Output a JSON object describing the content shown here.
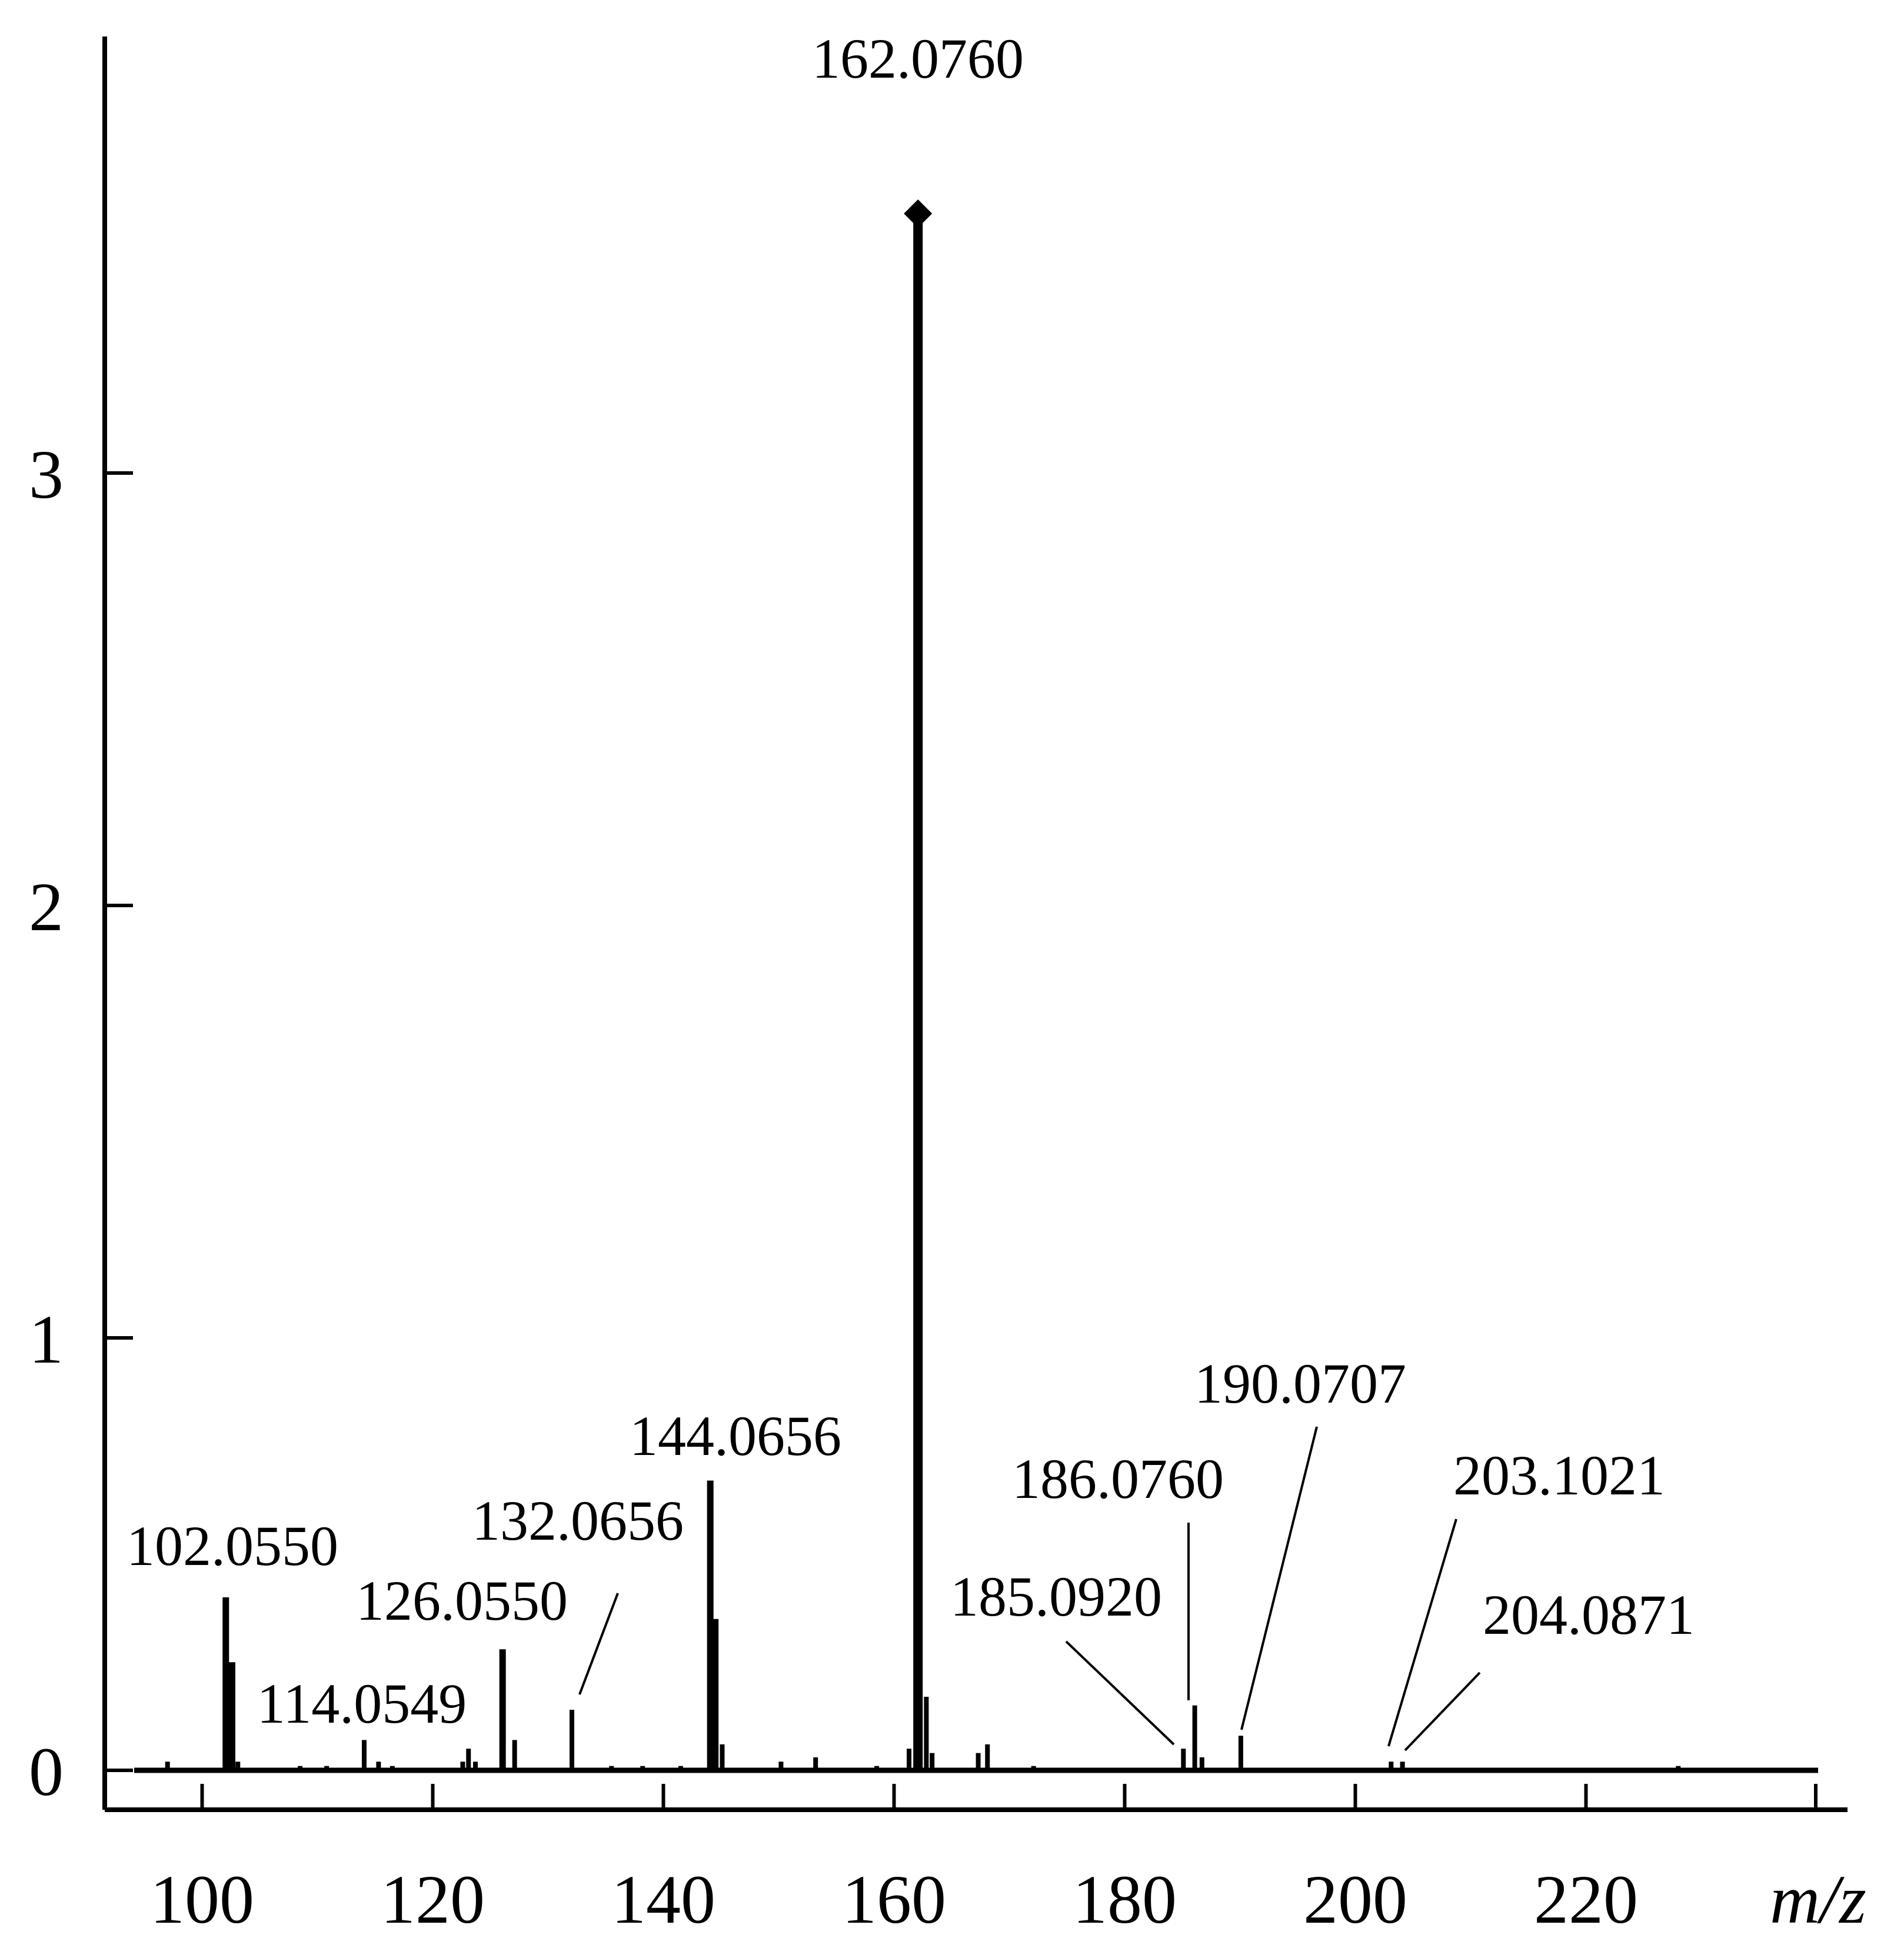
{
  "chart_data": {
    "type": "bar",
    "title": "",
    "xlabel": "m/z",
    "ylabel": "",
    "xlim": [
      91,
      240
    ],
    "ylim": [
      -0.09,
      4.1
    ],
    "x_ticks": [
      100,
      120,
      140,
      160,
      180,
      200,
      220
    ],
    "y_ticks": [
      0,
      1,
      2,
      3
    ],
    "grid": false,
    "legend": "none",
    "peaks": [
      {
        "mz": 97.0,
        "intensity": 0.02
      },
      {
        "mz": 102.055,
        "intensity": 0.4,
        "label": "102.0550"
      },
      {
        "mz": 102.6,
        "intensity": 0.25
      },
      {
        "mz": 103.1,
        "intensity": 0.02
      },
      {
        "mz": 108.5,
        "intensity": 0.01
      },
      {
        "mz": 110.8,
        "intensity": 0.01
      },
      {
        "mz": 114.0549,
        "intensity": 0.07,
        "label": "114.0549"
      },
      {
        "mz": 115.3,
        "intensity": 0.02
      },
      {
        "mz": 116.5,
        "intensity": 0.01
      },
      {
        "mz": 122.6,
        "intensity": 0.02
      },
      {
        "mz": 123.1,
        "intensity": 0.05
      },
      {
        "mz": 123.7,
        "intensity": 0.02
      },
      {
        "mz": 126.055,
        "intensity": 0.28,
        "label": "126.0550"
      },
      {
        "mz": 127.1,
        "intensity": 0.07
      },
      {
        "mz": 132.0656,
        "intensity": 0.14,
        "label": "132.0656"
      },
      {
        "mz": 135.5,
        "intensity": 0.01
      },
      {
        "mz": 138.2,
        "intensity": 0.01
      },
      {
        "mz": 141.5,
        "intensity": 0.01
      },
      {
        "mz": 144.0656,
        "intensity": 0.67,
        "label": "144.0656"
      },
      {
        "mz": 144.5,
        "intensity": 0.35
      },
      {
        "mz": 145.1,
        "intensity": 0.06
      },
      {
        "mz": 150.2,
        "intensity": 0.02
      },
      {
        "mz": 153.2,
        "intensity": 0.03
      },
      {
        "mz": 158.5,
        "intensity": 0.01
      },
      {
        "mz": 161.3,
        "intensity": 0.05
      },
      {
        "mz": 162.076,
        "intensity": 3.6,
        "label": "162.0760"
      },
      {
        "mz": 162.8,
        "intensity": 0.17
      },
      {
        "mz": 163.3,
        "intensity": 0.04
      },
      {
        "mz": 167.3,
        "intensity": 0.04
      },
      {
        "mz": 168.1,
        "intensity": 0.06
      },
      {
        "mz": 172.1,
        "intensity": 0.01
      },
      {
        "mz": 185.092,
        "intensity": 0.05,
        "label": "185.0920"
      },
      {
        "mz": 186.076,
        "intensity": 0.15,
        "label": "186.0760"
      },
      {
        "mz": 186.7,
        "intensity": 0.03
      },
      {
        "mz": 190.0707,
        "intensity": 0.08,
        "label": "190.0707"
      },
      {
        "mz": 203.1021,
        "intensity": 0.02,
        "label": "203.1021"
      },
      {
        "mz": 204.0871,
        "intensity": 0.02,
        "label": "204.0871"
      },
      {
        "mz": 228.0,
        "intensity": 0.01
      }
    ],
    "peak_marker": {
      "mz": 162.076,
      "intensity": 3.6,
      "shape": "diamond"
    }
  },
  "colors": {
    "ink": "#000000",
    "background": "#ffffff"
  }
}
